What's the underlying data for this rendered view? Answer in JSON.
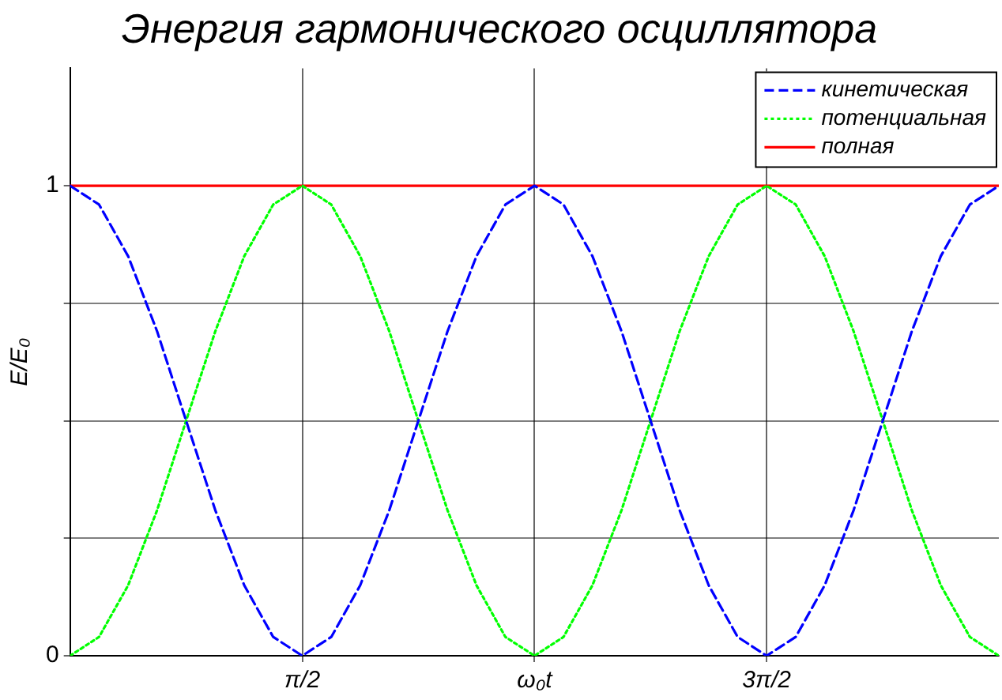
{
  "chart_data": {
    "type": "line",
    "title": "Энергия гармонического осциллятора",
    "ylabel": "E/E₀",
    "x": [
      0,
      0.196,
      0.393,
      0.589,
      0.785,
      0.982,
      1.178,
      1.374,
      1.571,
      1.767,
      1.963,
      2.16,
      2.356,
      2.553,
      2.749,
      2.945,
      3.142,
      3.338,
      3.534,
      3.731,
      3.927,
      4.123,
      4.32,
      4.516,
      4.712,
      4.909,
      5.105,
      5.301,
      5.498,
      5.694,
      5.89,
      6.087,
      6.283
    ],
    "series": [
      {
        "name": "кинетическая",
        "color": "#0000ff",
        "line_style": "dashed",
        "values": [
          1,
          0.96,
          0.85,
          0.69,
          0.5,
          0.31,
          0.15,
          0.04,
          0,
          0.04,
          0.15,
          0.31,
          0.5,
          0.69,
          0.85,
          0.96,
          1,
          0.96,
          0.85,
          0.69,
          0.5,
          0.31,
          0.15,
          0.04,
          0,
          0.04,
          0.15,
          0.31,
          0.5,
          0.69,
          0.85,
          0.96,
          1
        ]
      },
      {
        "name": "потенциальная",
        "color": "#00ff00",
        "line_style": "dotted",
        "values": [
          0,
          0.04,
          0.15,
          0.31,
          0.5,
          0.69,
          0.85,
          0.96,
          1,
          0.96,
          0.85,
          0.69,
          0.5,
          0.31,
          0.15,
          0.04,
          0,
          0.04,
          0.15,
          0.31,
          0.5,
          0.69,
          0.85,
          0.96,
          1,
          0.96,
          0.85,
          0.69,
          0.5,
          0.31,
          0.15,
          0.04,
          0
        ]
      },
      {
        "name": "полная",
        "color": "#ff0000",
        "line_style": "solid",
        "x": [
          0,
          6.283
        ],
        "values": [
          1,
          1
        ]
      }
    ],
    "xlim": [
      0,
      6.283
    ],
    "xticks": [
      {
        "value": 1.571,
        "label": "π/2"
      },
      {
        "value": 3.142,
        "label": "ω₀t"
      },
      {
        "value": 4.712,
        "label": "3π/2"
      }
    ],
    "ylim": [
      0,
      1.25
    ],
    "yticks": [
      0,
      {
        "value": 0.25,
        "label": null
      },
      {
        "value": 0.5,
        "label": null
      },
      {
        "value": 0.75,
        "label": null
      },
      1
    ],
    "grid": true,
    "legend": "top right",
    "marker": "none"
  }
}
